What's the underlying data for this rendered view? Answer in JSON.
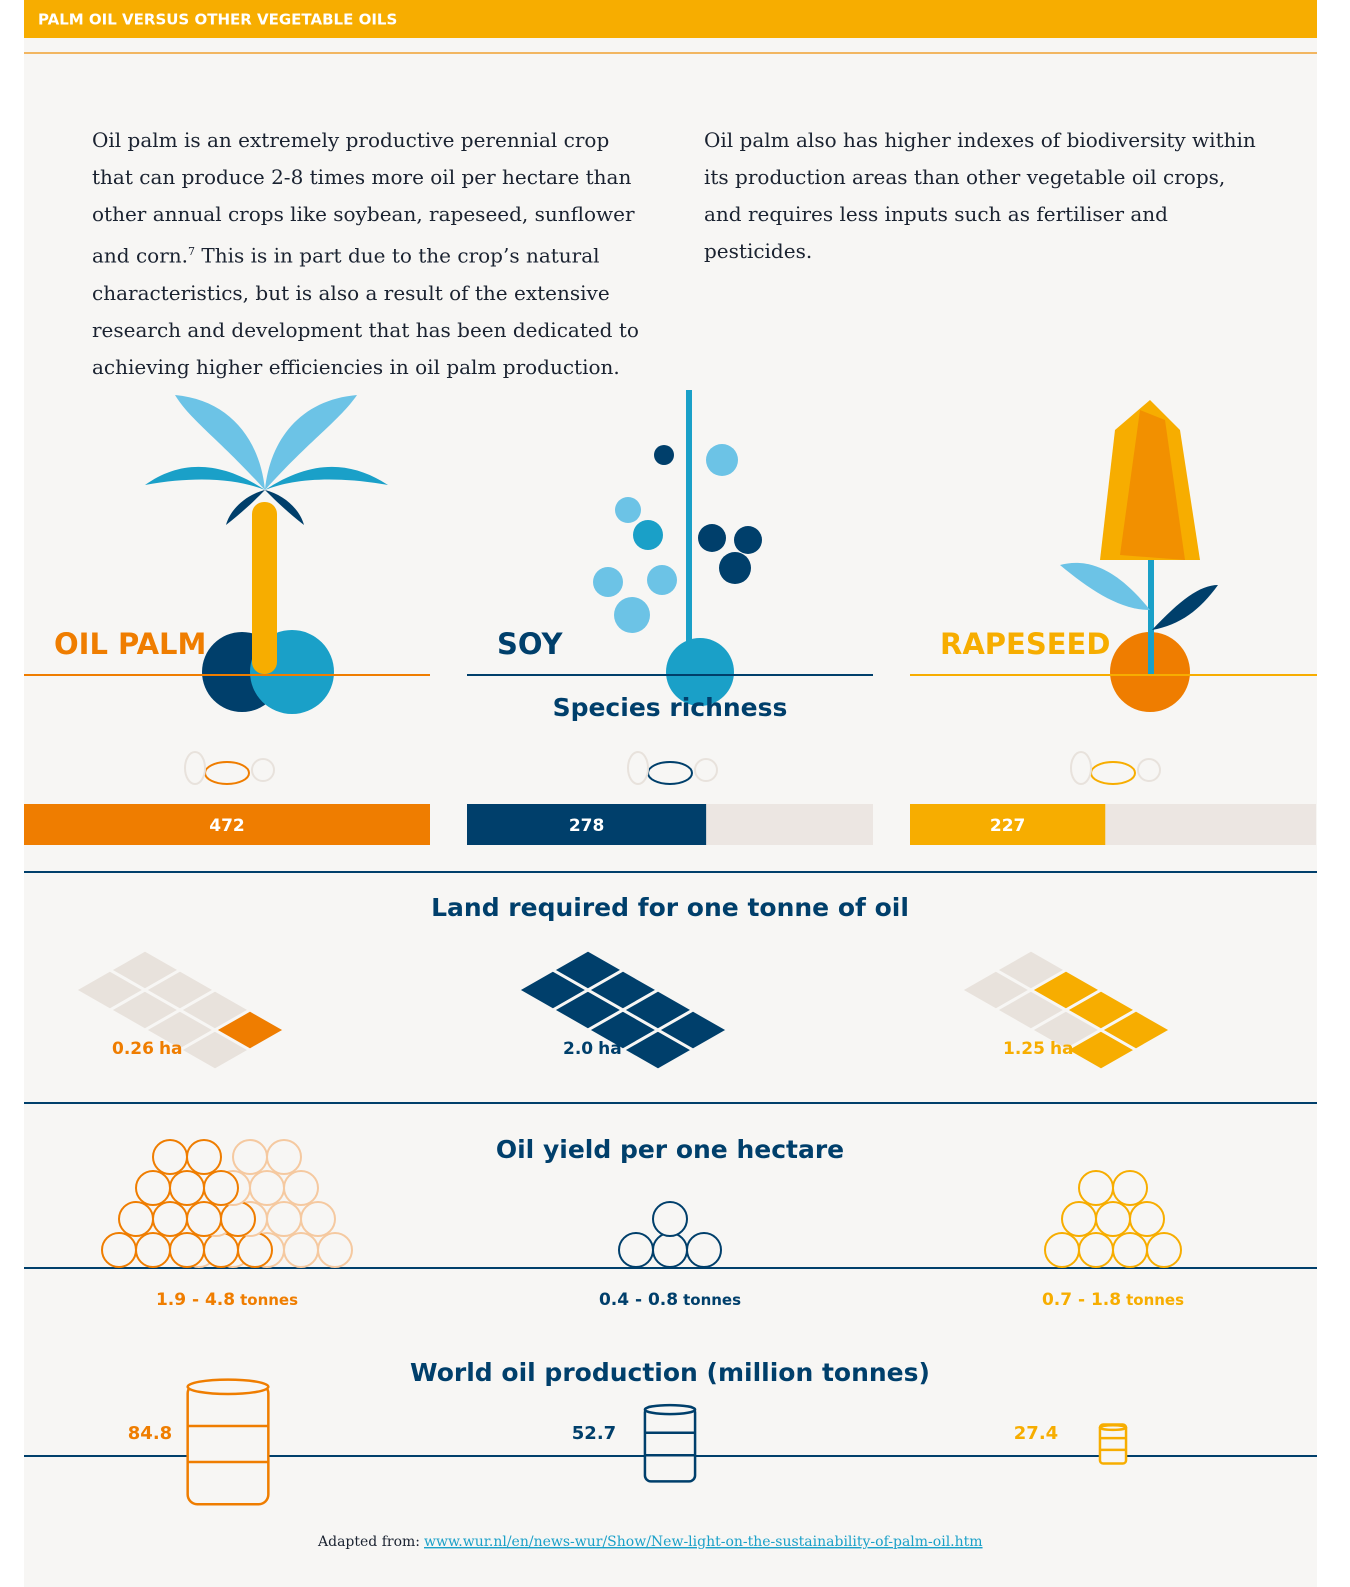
{
  "header": {
    "title": "PALM OIL VERSUS OTHER VEGETABLE OILS"
  },
  "intro": {
    "left_before": "Oil palm is an extremely productive perennial crop that can produce 2-8 times more oil per hectare than other annual crops like soybean, rapeseed, sunflower and corn.",
    "footnote": "7",
    "left_after": " This is in part due to the crop’s natural characteristics, but is also a result of the extensive research and development that has been dedicated to achieving higher efficiencies in oil palm production.",
    "right": "Oil palm also has higher indexes of biodiversity within its production areas than other vegetable oil crops, and requires less inputs such as fertiliser and pesticides."
  },
  "crops": [
    "OIL PALM",
    "SOY",
    "RAPESEED"
  ],
  "species_richness": {
    "title": "Species richness",
    "values": [
      472,
      278,
      227
    ]
  },
  "land": {
    "title": "Land required for one tonne of oil",
    "values": [
      "0.26",
      "2.0",
      "1.25"
    ],
    "unit": "ha"
  },
  "yield": {
    "title": "Oil yield per one hectare",
    "values": [
      "1.9 - 4.8",
      "0.4 - 0.8",
      "0.7 - 1.8"
    ],
    "unit": "tonnes"
  },
  "world": {
    "title": "World oil production (million tonnes)",
    "values": [
      84.8,
      52.7,
      27.4
    ]
  },
  "source": {
    "label": "Adapted from:",
    "link": "www.wur.nl/en/news-wur/Show/New-light-on-the-sustainability-of-palm-oil.htm"
  }
}
